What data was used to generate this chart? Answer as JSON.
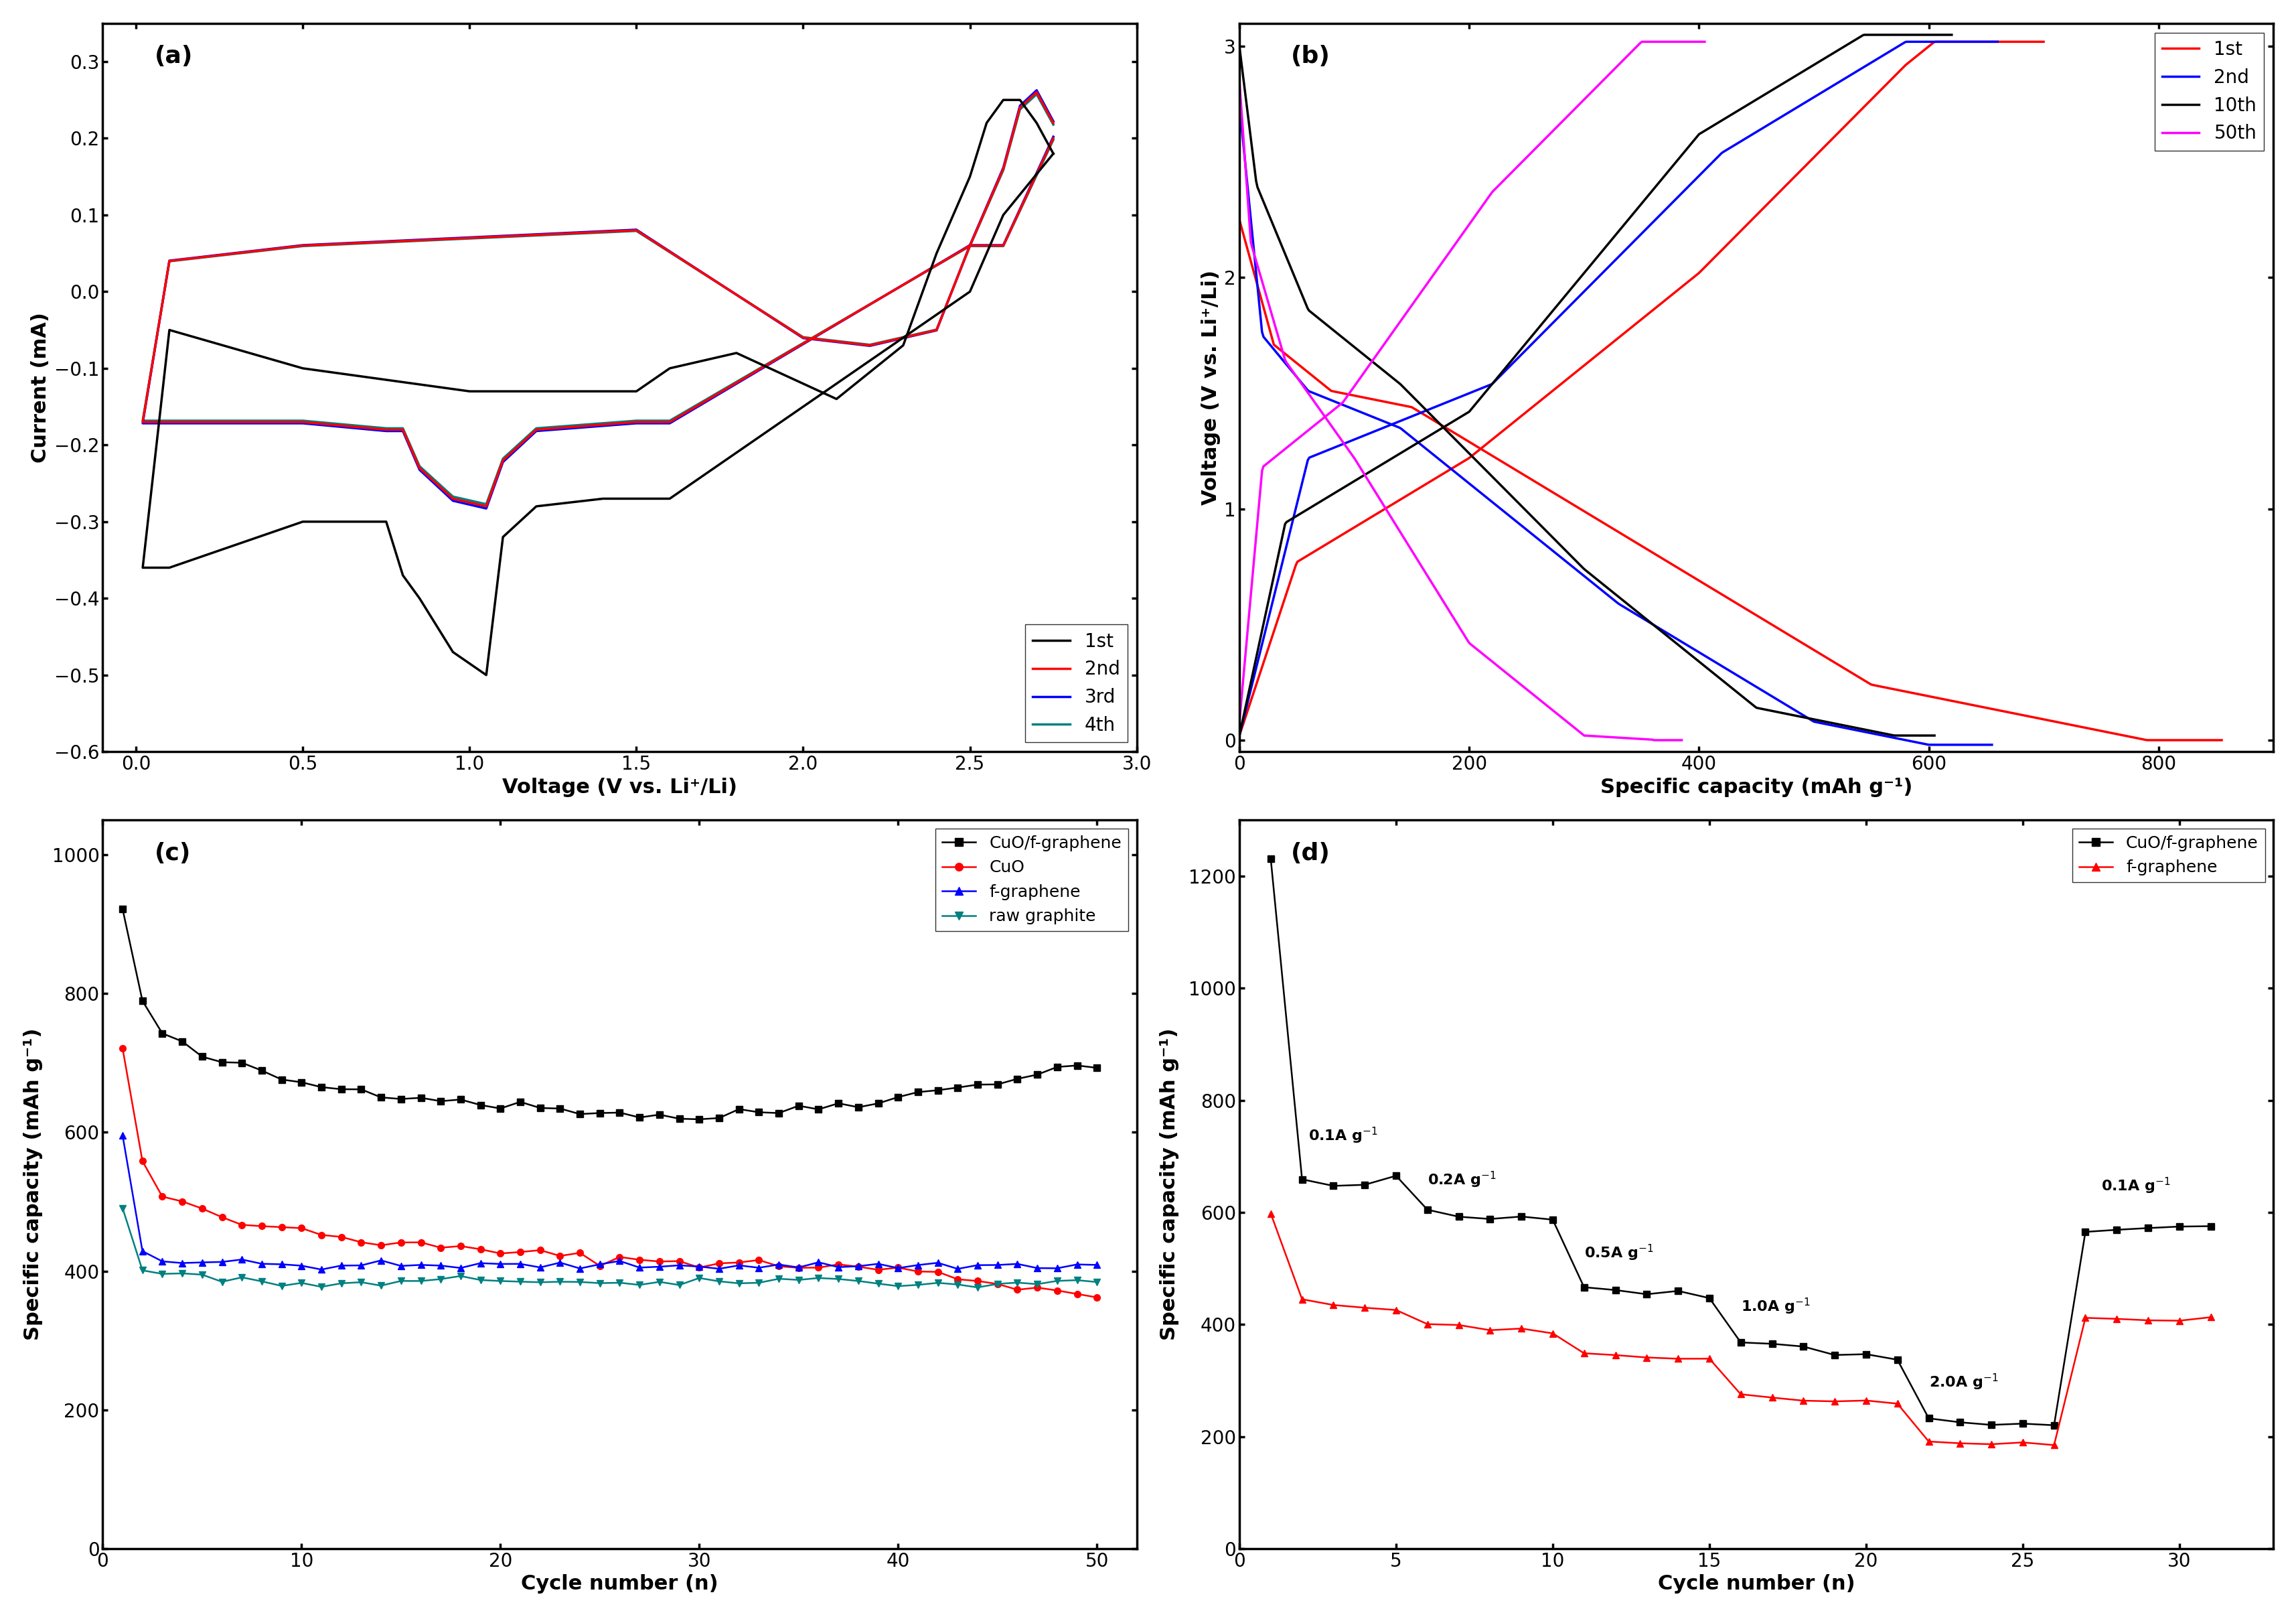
{
  "fig_width": 34.3,
  "fig_height": 24.14,
  "background_color": "#ffffff",
  "panel_a": {
    "label": "(a)",
    "xlabel": "Voltage (V vs. Li⁺/Li)",
    "ylabel": "Current (mA)",
    "xlim": [
      -0.1,
      3.0
    ],
    "ylim": [
      -0.6,
      0.35
    ],
    "xticks": [
      0.0,
      0.5,
      1.0,
      1.5,
      2.0,
      2.5,
      3.0
    ],
    "yticks": [
      -0.6,
      -0.5,
      -0.4,
      -0.3,
      -0.2,
      -0.1,
      0.0,
      0.1,
      0.2,
      0.3
    ],
    "legend_labels": [
      "1st",
      "2nd",
      "3rd",
      "4th"
    ],
    "legend_colors": [
      "#000000",
      "#ff0000",
      "#0000ff",
      "#008080"
    ]
  },
  "panel_b": {
    "label": "(b)",
    "xlabel": "Specific capacity (mAh g⁻¹)",
    "ylabel": "Voltage (V vs. Li⁺/Li)",
    "xlim": [
      0,
      900
    ],
    "ylim": [
      -0.05,
      3.1
    ],
    "xticks": [
      0,
      200,
      400,
      600,
      800
    ],
    "yticks": [
      0,
      1,
      2,
      3
    ],
    "legend_labels": [
      "1st",
      "2nd",
      "10th",
      "50th"
    ],
    "legend_colors": [
      "#ff0000",
      "#0000ff",
      "#000000",
      "#ff00ff"
    ]
  },
  "panel_c": {
    "label": "(c)",
    "xlabel": "Cycle number (n)",
    "ylabel": "Specific capacity (mAh g⁻¹)",
    "xlim": [
      0,
      52
    ],
    "ylim": [
      0,
      1050
    ],
    "xticks": [
      0,
      10,
      20,
      30,
      40,
      50
    ],
    "yticks": [
      0,
      200,
      400,
      600,
      800,
      1000
    ],
    "legend_labels": [
      "CuO/f-graphene",
      "CuO",
      "f-graphene",
      "raw graphite"
    ],
    "legend_colors": [
      "#000000",
      "#ff0000",
      "#0000ff",
      "#008080"
    ],
    "legend_markers": [
      "s",
      "o",
      "^",
      "v"
    ]
  },
  "panel_d": {
    "label": "(d)",
    "xlabel": "Cycle number (n)",
    "ylabel": "Specific capacity (mAh g⁻¹)",
    "xlim": [
      0,
      33
    ],
    "ylim": [
      0,
      1300
    ],
    "xticks": [
      0,
      5,
      10,
      15,
      20,
      25,
      30
    ],
    "yticks": [
      0,
      200,
      400,
      600,
      800,
      1000,
      1200
    ],
    "legend_labels": [
      "CuO/f-graphene",
      "f-graphene"
    ],
    "legend_colors": [
      "#000000",
      "#ff0000"
    ],
    "legend_markers": [
      "s",
      "^"
    ]
  }
}
